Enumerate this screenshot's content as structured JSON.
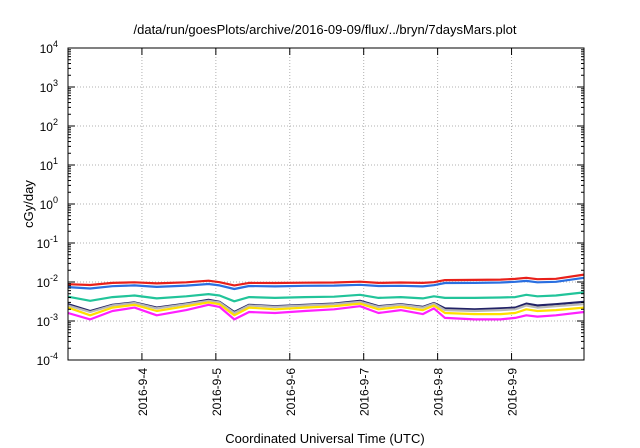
{
  "chart_data": {
    "type": "line",
    "title": "/data/run/goesPlots/archive/2016-09-09/flux/../bryn/7daysMars.plot",
    "xlabel": "Coordinated Universal Time (UTC)",
    "ylabel": "cGy/day",
    "yscale": "log",
    "ylim": [
      0.0001,
      10000
    ],
    "y_ticks": [
      {
        "value": 0.0001,
        "base": "10",
        "exp": "-4"
      },
      {
        "value": 0.001,
        "base": "10",
        "exp": "-3"
      },
      {
        "value": 0.01,
        "base": "10",
        "exp": "-2"
      },
      {
        "value": 0.1,
        "base": "10",
        "exp": "-1"
      },
      {
        "value": 1,
        "base": "10",
        "exp": "0"
      },
      {
        "value": 10,
        "base": "10",
        "exp": "1"
      },
      {
        "value": 100,
        "base": "10",
        "exp": "2"
      },
      {
        "value": 1000,
        "base": "10",
        "exp": "3"
      },
      {
        "value": 10000,
        "base": "10",
        "exp": "4"
      }
    ],
    "x_ticks": [
      "2016-9-4",
      "2016-9-5",
      "2016-9-6",
      "2016-9-7",
      "2016-9-8",
      "2016-9-9"
    ],
    "x_range_days": [
      3.0,
      9.98
    ],
    "grid": true,
    "legend": "none",
    "series": [
      {
        "color": "#e8201a",
        "points": [
          [
            3.0,
            0.0088
          ],
          [
            3.3,
            0.0084
          ],
          [
            3.6,
            0.0095
          ],
          [
            3.9,
            0.0098
          ],
          [
            4.2,
            0.0092
          ],
          [
            4.6,
            0.0098
          ],
          [
            4.9,
            0.0108
          ],
          [
            5.05,
            0.0099
          ],
          [
            5.25,
            0.0082
          ],
          [
            5.45,
            0.0095
          ],
          [
            5.8,
            0.0094
          ],
          [
            6.2,
            0.0096
          ],
          [
            6.6,
            0.0097
          ],
          [
            6.95,
            0.0102
          ],
          [
            7.2,
            0.0095
          ],
          [
            7.5,
            0.0097
          ],
          [
            7.8,
            0.0095
          ],
          [
            7.95,
            0.0099
          ],
          [
            8.1,
            0.0112
          ],
          [
            8.5,
            0.0113
          ],
          [
            8.85,
            0.0115
          ],
          [
            9.05,
            0.012
          ],
          [
            9.2,
            0.0128
          ],
          [
            9.35,
            0.0118
          ],
          [
            9.6,
            0.0121
          ],
          [
            9.98,
            0.0155
          ]
        ]
      },
      {
        "color": "#2a6fe0",
        "points": [
          [
            3.0,
            0.0074
          ],
          [
            3.3,
            0.0068
          ],
          [
            3.6,
            0.0078
          ],
          [
            3.9,
            0.0082
          ],
          [
            4.2,
            0.0075
          ],
          [
            4.6,
            0.0081
          ],
          [
            4.9,
            0.0089
          ],
          [
            5.05,
            0.0082
          ],
          [
            5.25,
            0.0066
          ],
          [
            5.45,
            0.0079
          ],
          [
            5.8,
            0.0077
          ],
          [
            6.2,
            0.008
          ],
          [
            6.6,
            0.0081
          ],
          [
            6.95,
            0.0085
          ],
          [
            7.2,
            0.0079
          ],
          [
            7.5,
            0.008
          ],
          [
            7.8,
            0.0077
          ],
          [
            7.95,
            0.0083
          ],
          [
            8.1,
            0.0094
          ],
          [
            8.5,
            0.0095
          ],
          [
            8.85,
            0.0097
          ],
          [
            9.05,
            0.0101
          ],
          [
            9.2,
            0.0107
          ],
          [
            9.35,
            0.0098
          ],
          [
            9.6,
            0.0101
          ],
          [
            9.98,
            0.0128
          ]
        ]
      },
      {
        "color": "#22c49a",
        "points": [
          [
            3.0,
            0.0042
          ],
          [
            3.3,
            0.0033
          ],
          [
            3.6,
            0.0041
          ],
          [
            3.9,
            0.0045
          ],
          [
            4.2,
            0.0038
          ],
          [
            4.6,
            0.0043
          ],
          [
            4.9,
            0.0049
          ],
          [
            5.05,
            0.0045
          ],
          [
            5.25,
            0.0032
          ],
          [
            5.45,
            0.0041
          ],
          [
            5.8,
            0.0039
          ],
          [
            6.2,
            0.0041
          ],
          [
            6.6,
            0.0042
          ],
          [
            6.95,
            0.0047
          ],
          [
            7.2,
            0.0039
          ],
          [
            7.5,
            0.0041
          ],
          [
            7.8,
            0.0038
          ],
          [
            7.95,
            0.0043
          ],
          [
            8.1,
            0.0039
          ],
          [
            8.5,
            0.0039
          ],
          [
            8.85,
            0.004
          ],
          [
            9.05,
            0.0041
          ],
          [
            9.2,
            0.0047
          ],
          [
            9.35,
            0.0043
          ],
          [
            9.6,
            0.0045
          ],
          [
            9.98,
            0.0054
          ]
        ]
      },
      {
        "color": "#222266",
        "points": [
          [
            3.0,
            0.0027
          ],
          [
            3.3,
            0.0018
          ],
          [
            3.6,
            0.0026
          ],
          [
            3.9,
            0.003
          ],
          [
            4.2,
            0.0022
          ],
          [
            4.6,
            0.0028
          ],
          [
            4.9,
            0.0035
          ],
          [
            5.05,
            0.0031
          ],
          [
            5.25,
            0.0017
          ],
          [
            5.45,
            0.0026
          ],
          [
            5.8,
            0.0024
          ],
          [
            6.2,
            0.0026
          ],
          [
            6.6,
            0.0028
          ],
          [
            6.95,
            0.0033
          ],
          [
            7.2,
            0.0024
          ],
          [
            7.5,
            0.0027
          ],
          [
            7.8,
            0.0023
          ],
          [
            7.95,
            0.0029
          ],
          [
            8.1,
            0.0021
          ],
          [
            8.5,
            0.002
          ],
          [
            8.85,
            0.0021
          ],
          [
            9.05,
            0.0022
          ],
          [
            9.2,
            0.0028
          ],
          [
            9.35,
            0.0025
          ],
          [
            9.6,
            0.0027
          ],
          [
            9.98,
            0.0031
          ]
        ]
      },
      {
        "color": "#b8b8b8",
        "points": [
          [
            3.0,
            0.0025
          ],
          [
            3.3,
            0.0017
          ],
          [
            3.6,
            0.0025
          ],
          [
            3.9,
            0.0029
          ],
          [
            4.2,
            0.0021
          ],
          [
            4.6,
            0.0027
          ],
          [
            4.9,
            0.0033
          ],
          [
            5.05,
            0.003
          ],
          [
            5.25,
            0.0016
          ],
          [
            5.45,
            0.0025
          ],
          [
            5.8,
            0.0023
          ],
          [
            6.2,
            0.0025
          ],
          [
            6.6,
            0.0027
          ],
          [
            6.95,
            0.0031
          ],
          [
            7.2,
            0.0023
          ],
          [
            7.5,
            0.0026
          ],
          [
            7.8,
            0.0022
          ],
          [
            7.95,
            0.0028
          ],
          [
            8.1,
            0.0019
          ],
          [
            8.5,
            0.0018
          ],
          [
            8.85,
            0.0019
          ],
          [
            9.05,
            0.002
          ],
          [
            9.2,
            0.0025
          ],
          [
            9.35,
            0.0022
          ],
          [
            9.6,
            0.0024
          ],
          [
            9.98,
            0.0027
          ]
        ]
      },
      {
        "color": "#ffe000",
        "points": [
          [
            3.0,
            0.0022
          ],
          [
            3.3,
            0.0014
          ],
          [
            3.6,
            0.0022
          ],
          [
            3.9,
            0.0026
          ],
          [
            4.2,
            0.0018
          ],
          [
            4.6,
            0.0024
          ],
          [
            4.9,
            0.003
          ],
          [
            5.05,
            0.0027
          ],
          [
            5.25,
            0.0014
          ],
          [
            5.45,
            0.0022
          ],
          [
            5.8,
            0.002
          ],
          [
            6.2,
            0.0022
          ],
          [
            6.6,
            0.0024
          ],
          [
            6.95,
            0.0028
          ],
          [
            7.2,
            0.002
          ],
          [
            7.5,
            0.0023
          ],
          [
            7.8,
            0.0019
          ],
          [
            7.95,
            0.0025
          ],
          [
            8.1,
            0.0016
          ],
          [
            8.5,
            0.0015
          ],
          [
            8.85,
            0.0015
          ],
          [
            9.05,
            0.0016
          ],
          [
            9.2,
            0.002
          ],
          [
            9.35,
            0.0018
          ],
          [
            9.6,
            0.0019
          ],
          [
            9.98,
            0.0022
          ]
        ]
      },
      {
        "color": "#ff20ff",
        "points": [
          [
            3.0,
            0.0016
          ],
          [
            3.3,
            0.0011
          ],
          [
            3.6,
            0.0018
          ],
          [
            3.9,
            0.0022
          ],
          [
            4.2,
            0.0014
          ],
          [
            4.6,
            0.0019
          ],
          [
            4.9,
            0.0026
          ],
          [
            5.05,
            0.0023
          ],
          [
            5.25,
            0.0011
          ],
          [
            5.45,
            0.0017
          ],
          [
            5.8,
            0.0016
          ],
          [
            6.2,
            0.0018
          ],
          [
            6.6,
            0.002
          ],
          [
            6.95,
            0.0024
          ],
          [
            7.2,
            0.0016
          ],
          [
            7.5,
            0.0019
          ],
          [
            7.8,
            0.0015
          ],
          [
            7.95,
            0.0021
          ],
          [
            8.1,
            0.0012
          ],
          [
            8.5,
            0.0011
          ],
          [
            8.85,
            0.0011
          ],
          [
            9.05,
            0.0012
          ],
          [
            9.2,
            0.0014
          ],
          [
            9.35,
            0.0013
          ],
          [
            9.6,
            0.0014
          ],
          [
            9.98,
            0.0017
          ]
        ]
      }
    ]
  }
}
